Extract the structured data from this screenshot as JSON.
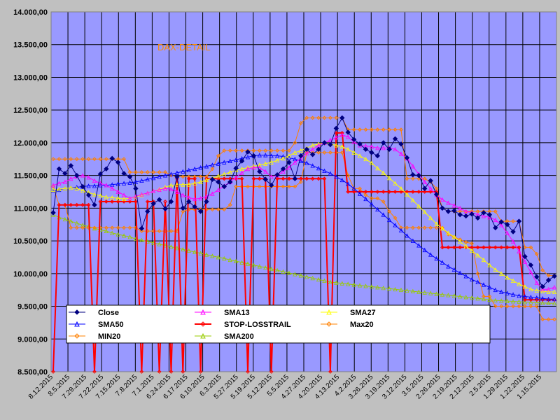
{
  "chart_data": {
    "type": "line",
    "title": "DAX-DETAIL",
    "xlabel": "",
    "ylabel": "",
    "x_direction": "descending",
    "ylim": [
      8500,
      14000
    ],
    "y_ticks": [
      "14.000,00",
      "13.500,00",
      "13.000,00",
      "12.500,00",
      "12.000,00",
      "11.500,00",
      "11.000,00",
      "10.500,00",
      "10.000,00",
      "9.500,00",
      "9.000,00",
      "8.500,00"
    ],
    "x_ticks": [
      "8.12.2015",
      "8.5.2015",
      "7.29.2015",
      "7.22.2015",
      "7.15.2015",
      "7.8.2015",
      "7.1.2015",
      "6.24.2015",
      "6.17.2015",
      "6.10.2015",
      "6.3.2015",
      "5.27.2015",
      "5.19.2015",
      "5.12.2015",
      "5.5.2015",
      "4.27.2015",
      "4.20.2015",
      "4.13.2015",
      "4.2.2015",
      "3.26.2015",
      "3.19.2015",
      "3.12.2015",
      "3.5.2015",
      "2.26.2015",
      "2.19.2015",
      "2.12.2015",
      "2.5.2015",
      "1.29.2015",
      "1.22.2015",
      "1.15.2015"
    ],
    "grid": true,
    "legend_position": "bottom-left",
    "background": "#9999ff",
    "series": [
      {
        "name": "Close",
        "color": "#000080",
        "marker": "diamond",
        "values": [
          10930,
          11600,
          11530,
          11650,
          11500,
          11330,
          11200,
          11050,
          11520,
          11600,
          11760,
          11700,
          11530,
          11480,
          11300,
          10690,
          10950,
          11070,
          11130,
          10990,
          11100,
          11480,
          11000,
          11100,
          11020,
          10950,
          11100,
          11440,
          11400,
          11330,
          11400,
          11610,
          11720,
          11860,
          11800,
          11560,
          11440,
          11350,
          11510,
          11600,
          11700,
          11450,
          11800,
          11900,
          11820,
          11900,
          12000,
          11970,
          12220,
          12380,
          12160,
          12050,
          11980,
          11900,
          11850,
          11800,
          12000,
          11900,
          12060,
          11980,
          11770,
          11510,
          11500,
          11300,
          11420,
          11210,
          11000,
          10950,
          10960,
          10900,
          10880,
          10910,
          10850,
          10930,
          10900,
          10700,
          10790,
          10750,
          10640,
          10800,
          10260,
          10130,
          9950,
          9800,
          9900,
          9960
        ]
      },
      {
        "name": "SMA13",
        "color": "#ff00ff",
        "marker": "triangle",
        "values": [
          11350,
          11380,
          11400,
          11450,
          11480,
          11500,
          11470,
          11420,
          11380,
          11350,
          11300,
          11250,
          11200,
          11150,
          11180,
          11210,
          11230,
          11260,
          11280,
          11300,
          11290,
          11250,
          11200,
          11160,
          11140,
          11150,
          11180,
          11220,
          11280,
          11340,
          11400,
          11470,
          11540,
          11600,
          11620,
          11620,
          11560,
          11480,
          11500,
          11560,
          11620,
          11700,
          11760,
          11840,
          11900,
          11960,
          12000,
          12040,
          12080,
          12120,
          12090,
          12010,
          11960,
          11950,
          11940,
          11920,
          11920,
          11920,
          11900,
          11830,
          11760,
          11640,
          11520,
          11400,
          11300,
          11200,
          11130,
          11080,
          11040,
          11000,
          10950,
          10930,
          10900,
          10880,
          10860,
          10820,
          10740,
          10620,
          10490,
          10340,
          10180,
          10020,
          9860,
          9760,
          9760,
          9790
        ]
      },
      {
        "name": "SMA27",
        "color": "#ffff00",
        "marker": "triangle",
        "values": [
          11280,
          11290,
          11300,
          11310,
          11300,
          11270,
          11240,
          11210,
          11190,
          11170,
          11160,
          11150,
          11140,
          11150,
          11170,
          11200,
          11230,
          11260,
          11290,
          11320,
          11350,
          11360,
          11360,
          11360,
          11380,
          11400,
          11430,
          11460,
          11490,
          11520,
          11550,
          11580,
          11600,
          11620,
          11640,
          11660,
          11680,
          11700,
          11730,
          11760,
          11800,
          11850,
          11880,
          11920,
          11960,
          11980,
          12000,
          11980,
          11960,
          11940,
          11900,
          11850,
          11800,
          11750,
          11690,
          11610,
          11540,
          11460,
          11380,
          11300,
          11210,
          11120,
          11030,
          10940,
          10850,
          10760,
          10690,
          10620,
          10560,
          10490,
          10420,
          10350,
          10280,
          10210,
          10130,
          10060,
          10000,
          9940,
          9890,
          9840,
          9800,
          9760,
          9740,
          9730,
          9720,
          9720
        ]
      },
      {
        "name": "SMA50",
        "color": "#0000ff",
        "marker": "triangle",
        "values": [
          11270,
          11280,
          11300,
          11310,
          11320,
          11330,
          11340,
          11340,
          11350,
          11350,
          11360,
          11370,
          11380,
          11390,
          11400,
          11420,
          11440,
          11460,
          11480,
          11500,
          11520,
          11540,
          11560,
          11580,
          11600,
          11620,
          11640,
          11660,
          11680,
          11700,
          11720,
          11740,
          11760,
          11780,
          11800,
          11810,
          11810,
          11800,
          11800,
          11790,
          11770,
          11750,
          11720,
          11690,
          11650,
          11610,
          11570,
          11530,
          11480,
          11430,
          11370,
          11300,
          11220,
          11140,
          11060,
          10980,
          10900,
          10820,
          10740,
          10660,
          10580,
          10500,
          10430,
          10360,
          10290,
          10230,
          10170,
          10110,
          10060,
          10010,
          9960,
          9910,
          9870,
          9830,
          9790,
          9750,
          9720,
          9700,
          9680,
          9660,
          9650,
          9640,
          9630,
          9620,
          9610,
          9610
        ]
      },
      {
        "name": "STOP-LOSSTRAIL",
        "color": "#ff0000",
        "marker": "diamond",
        "values": [
          8500,
          11050,
          11050,
          11050,
          11050,
          11050,
          11050,
          8500,
          11100,
          11100,
          11100,
          11100,
          11100,
          11100,
          11100,
          8500,
          11100,
          11100,
          8500,
          11100,
          8500,
          11450,
          8500,
          11450,
          11450,
          8500,
          11450,
          11450,
          11450,
          11450,
          11450,
          11450,
          11450,
          8500,
          11450,
          11450,
          11450,
          8500,
          11450,
          11450,
          11450,
          11450,
          11450,
          11450,
          11450,
          11450,
          11450,
          8500,
          12150,
          12150,
          11250,
          11250,
          11250,
          11250,
          11250,
          11250,
          11250,
          11250,
          11250,
          11250,
          11250,
          11250,
          11250,
          11250,
          11250,
          11250,
          10400,
          10400,
          10400,
          10400,
          10400,
          10400,
          10400,
          10400,
          10400,
          10400,
          10400,
          10400,
          10400,
          10400,
          9600,
          9600,
          9600,
          9600,
          9600,
          9600
        ]
      },
      {
        "name": "Max20",
        "color": "#ff8000",
        "marker": "diamond",
        "values": [
          11750,
          11750,
          11750,
          11750,
          11750,
          11750,
          11750,
          11750,
          11750,
          11750,
          11750,
          11750,
          11750,
          11550,
          11550,
          11550,
          11550,
          11550,
          11550,
          11550,
          11500,
          11480,
          11480,
          11480,
          11480,
          11480,
          11480,
          11600,
          11800,
          11880,
          11880,
          11880,
          11880,
          11880,
          11880,
          11880,
          11880,
          11880,
          11880,
          11880,
          11880,
          12000,
          12300,
          12380,
          12380,
          12380,
          12380,
          12380,
          12380,
          12380,
          12200,
          12200,
          12200,
          12200,
          12200,
          12200,
          12200,
          12200,
          12200,
          12200,
          11450,
          11450,
          11450,
          11450,
          11400,
          11300,
          11000,
          10950,
          10950,
          10950,
          10950,
          10950,
          10950,
          10950,
          10950,
          10950,
          10800,
          10800,
          10800,
          10800,
          10400,
          10400,
          10300,
          10050,
          9970,
          9970
        ]
      },
      {
        "name": "MIN20",
        "color": "#ff8000",
        "marker": "diamond",
        "values": [
          11330,
          11050,
          11050,
          10700,
          10700,
          10700,
          10700,
          10700,
          10700,
          10700,
          10700,
          10700,
          10700,
          10700,
          10700,
          10650,
          10650,
          10650,
          10650,
          10650,
          10650,
          10650,
          10950,
          10980,
          10980,
          10980,
          10980,
          10980,
          10980,
          10980,
          11050,
          11330,
          11330,
          11330,
          11330,
          11330,
          11330,
          11330,
          11330,
          11330,
          11330,
          11330,
          11400,
          11850,
          11850,
          11850,
          11850,
          11850,
          11850,
          11850,
          11500,
          11300,
          11300,
          11200,
          11150,
          11150,
          11100,
          10950,
          10850,
          10700,
          10700,
          10700,
          10700,
          10700,
          10700,
          10700,
          10700,
          10600,
          10560,
          10520,
          10480,
          10460,
          10000,
          9650,
          9650,
          9500,
          9500,
          9500,
          9500,
          9500,
          9500,
          9500,
          9500,
          9300,
          9300,
          9300
        ]
      },
      {
        "name": "SMA200",
        "color": "#99cc00",
        "marker": "triangle",
        "values": [
          10900,
          10860,
          10830,
          10800,
          10770,
          10740,
          10720,
          10690,
          10670,
          10650,
          10620,
          10600,
          10580,
          10560,
          10530,
          10510,
          10490,
          10470,
          10450,
          10430,
          10410,
          10390,
          10370,
          10350,
          10330,
          10310,
          10290,
          10270,
          10250,
          10230,
          10210,
          10190,
          10170,
          10150,
          10130,
          10110,
          10090,
          10070,
          10050,
          10030,
          10010,
          9990,
          9970,
          9950,
          9930,
          9910,
          9890,
          9870,
          9860,
          9850,
          9840,
          9830,
          9820,
          9810,
          9800,
          9790,
          9780,
          9770,
          9760,
          9750,
          9740,
          9730,
          9720,
          9710,
          9700,
          9690,
          9680,
          9670,
          9660,
          9650,
          9640,
          9630,
          9620,
          9610,
          9600,
          9590,
          9585,
          9580,
          9575,
          9570,
          9565,
          9560,
          9555,
          9550,
          9548,
          9545
        ]
      }
    ]
  }
}
